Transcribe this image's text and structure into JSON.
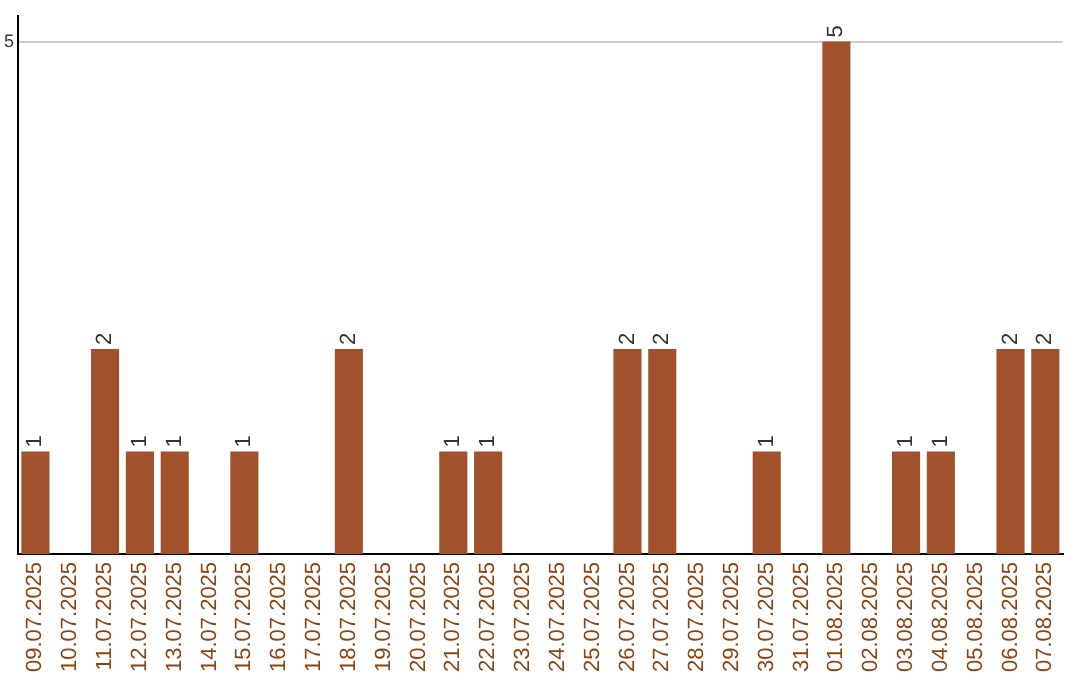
{
  "chart_data": {
    "type": "bar",
    "categories": [
      "09.07.2025",
      "10.07.2025",
      "11.07.2025",
      "12.07.2025",
      "13.07.2025",
      "14.07.2025",
      "15.07.2025",
      "16.07.2025",
      "17.07.2025",
      "18.07.2025",
      "19.07.2025",
      "20.07.2025",
      "21.07.2025",
      "22.07.2025",
      "23.07.2025",
      "24.07.2025",
      "25.07.2025",
      "26.07.2025",
      "27.07.2025",
      "28.07.2025",
      "29.07.2025",
      "30.07.2025",
      "31.07.2025",
      "01.08.2025",
      "02.08.2025",
      "03.08.2025",
      "04.08.2025",
      "05.08.2025",
      "06.08.2025",
      "07.08.2025"
    ],
    "values": [
      1,
      0,
      2,
      1,
      1,
      0,
      1,
      0,
      0,
      2,
      0,
      0,
      1,
      1,
      0,
      0,
      0,
      2,
      2,
      0,
      0,
      1,
      0,
      5,
      0,
      1,
      1,
      0,
      2,
      2
    ],
    "value_labels": [
      "1",
      null,
      "2",
      "1",
      "1",
      null,
      "1",
      null,
      null,
      "2",
      null,
      null,
      "1",
      "1",
      null,
      null,
      null,
      "2",
      "2",
      null,
      null,
      "1",
      null,
      "5",
      null,
      "1",
      "1",
      null,
      "2",
      "2"
    ],
    "color": "#a0522d",
    "ylim": [
      0,
      5.25
    ],
    "yticks": [
      5
    ],
    "grid": "y",
    "legend": false
  }
}
